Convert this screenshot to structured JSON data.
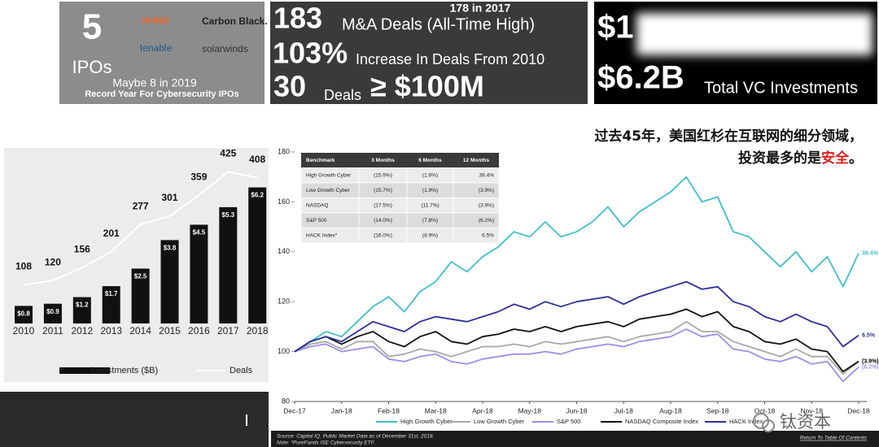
{
  "ipo_panel": {
    "count": "5",
    "label": "IPOs",
    "logos": [
      "avast",
      "Carbon Black.",
      "tenable",
      "solarwinds"
    ],
    "note": "Maybe 8 in 2019",
    "subnote": "Record Year For Cybersecurity IPOs"
  },
  "ma_panel": {
    "prior": "178 in 2017",
    "deals": "183",
    "deals_label": "M&A Deals (All-Time High)",
    "increase": "103%",
    "increase_label": "Increase In Deals From 2010",
    "big_deals": "30",
    "big_deals_label": "Deals",
    "big_deals_threshold": "≥ $100M"
  },
  "vc_panel": {
    "top": "$1",
    "total": "$6.2B",
    "total_label": "Total VC Investments"
  },
  "annotation": {
    "line1": "过去45年，美国红杉在互联网的细分领域，",
    "line2": "投资最多的是",
    "highlight": "安全",
    "end": "。"
  },
  "watermark": "钛资本",
  "chart_data": [
    {
      "type": "bar",
      "categories": [
        "2010",
        "2011",
        "2012",
        "2013",
        "2014",
        "2015",
        "2016",
        "2017",
        "2018"
      ],
      "ylim": [
        0,
        7
      ],
      "y2lim": [
        0,
        430
      ],
      "series": [
        {
          "name": "Investments ($B)",
          "color": "#111111",
          "values": [
            0.8,
            0.9,
            1.2,
            1.7,
            2.5,
            3.8,
            4.5,
            5.3,
            6.2
          ],
          "value_labels": [
            "$0.8",
            "$0.9",
            "$1.2",
            "$1.7",
            "$2.5",
            "$3.8",
            "$4.5",
            "$5.3",
            "$6.2"
          ]
        },
        {
          "name": "Deals",
          "type": "line",
          "axis": "y2",
          "color": "#ffffff",
          "values": [
            108,
            120,
            156,
            201,
            277,
            301,
            359,
            425,
            408
          ]
        }
      ]
    },
    {
      "type": "line",
      "x": [
        "Dec-17",
        null,
        null,
        "Jan-18",
        null,
        null,
        "Feb-18",
        null,
        null,
        "Mar-18",
        null,
        null,
        "Apr-18",
        null,
        null,
        "May-18",
        null,
        null,
        "Jun-18",
        null,
        null,
        "Jul-18",
        null,
        null,
        "Aug-18",
        null,
        null,
        "Sep-18",
        null,
        null,
        "Oct-18",
        null,
        null,
        "Nov-18",
        null,
        null,
        "Dec-18"
      ],
      "ylim": [
        80,
        180
      ],
      "yticks": [
        80,
        100,
        120,
        140,
        160,
        180
      ],
      "series": [
        {
          "name": "High Growth Cyber",
          "color": "#3fbfcf",
          "end_label": "39.4%",
          "values": [
            100,
            104,
            108,
            106,
            112,
            118,
            122,
            116,
            124,
            128,
            136,
            132,
            138,
            142,
            148,
            146,
            152,
            146,
            148,
            152,
            158,
            150,
            156,
            160,
            164,
            170,
            160,
            162,
            148,
            146,
            140,
            134,
            140,
            132,
            138,
            126,
            139.4
          ]
        },
        {
          "name": "Low Growth Cyber",
          "color": "#a8a8a8",
          "end_label": "(3.9%)",
          "values": [
            100,
            103,
            104,
            101,
            104,
            104,
            98,
            99,
            101,
            100,
            98,
            100,
            102,
            102,
            103,
            102,
            104,
            103,
            104,
            105,
            106,
            104,
            106,
            107,
            108,
            112,
            108,
            108,
            104,
            102,
            100,
            98,
            101,
            98,
            98,
            91,
            96.1
          ]
        },
        {
          "name": "S&P 500",
          "color": "#9d8fe8",
          "end_label": "(6.2%)",
          "values": [
            100,
            102,
            103,
            100,
            101,
            102,
            97,
            96,
            98,
            99,
            96,
            95,
            97,
            98,
            99,
            99,
            100,
            99,
            101,
            102,
            103,
            102,
            104,
            105,
            106,
            109,
            106,
            107,
            101,
            100,
            97,
            96,
            98,
            95,
            96,
            88,
            93.8
          ]
        },
        {
          "name": "NASDAQ Composite Index",
          "color": "#111111",
          "end_label": "(3.9%)",
          "values": [
            100,
            104,
            106,
            103,
            106,
            108,
            104,
            102,
            106,
            108,
            104,
            103,
            106,
            107,
            109,
            108,
            110,
            108,
            110,
            111,
            112,
            110,
            113,
            114,
            115,
            117,
            114,
            116,
            110,
            108,
            104,
            103,
            105,
            101,
            100,
            92,
            96.1
          ]
        },
        {
          "name": "HACK Index",
          "color": "#2e2e9a",
          "end_label": "6.5%",
          "values": [
            100,
            104,
            106,
            104,
            108,
            112,
            110,
            108,
            112,
            114,
            113,
            112,
            114,
            116,
            119,
            117,
            120,
            118,
            120,
            121,
            122,
            119,
            122,
            124,
            126,
            128,
            125,
            126,
            120,
            118,
            114,
            112,
            115,
            112,
            110,
            102,
            106.5
          ]
        }
      ],
      "table": {
        "header": [
          "Benchmark",
          "3 Months",
          "6 Months",
          "12 Months"
        ],
        "rows": [
          [
            "High Growth Cyber",
            "(15.9%)",
            "(1.6%)",
            "39.4%"
          ],
          [
            "Low Growth Cyber",
            "(15.7%)",
            "(1.9%)",
            "(3.9%)"
          ],
          [
            "NASDAQ",
            "(17.5%)",
            "(11.7%)",
            "(3.9%)"
          ],
          [
            "S&P 500",
            "(14.0%)",
            "(7.8%)",
            "(6.2%)"
          ],
          [
            "HACK Index*",
            "(16.0%)",
            "(8.9%)",
            "6.5%"
          ]
        ]
      },
      "source": "Source: Capital IQ. Public Market Data as of December 31st, 2018.",
      "note": "Note: *PureFunds ISE Cybersecurity ETF.",
      "link": "Return To Table Of Contents"
    }
  ]
}
